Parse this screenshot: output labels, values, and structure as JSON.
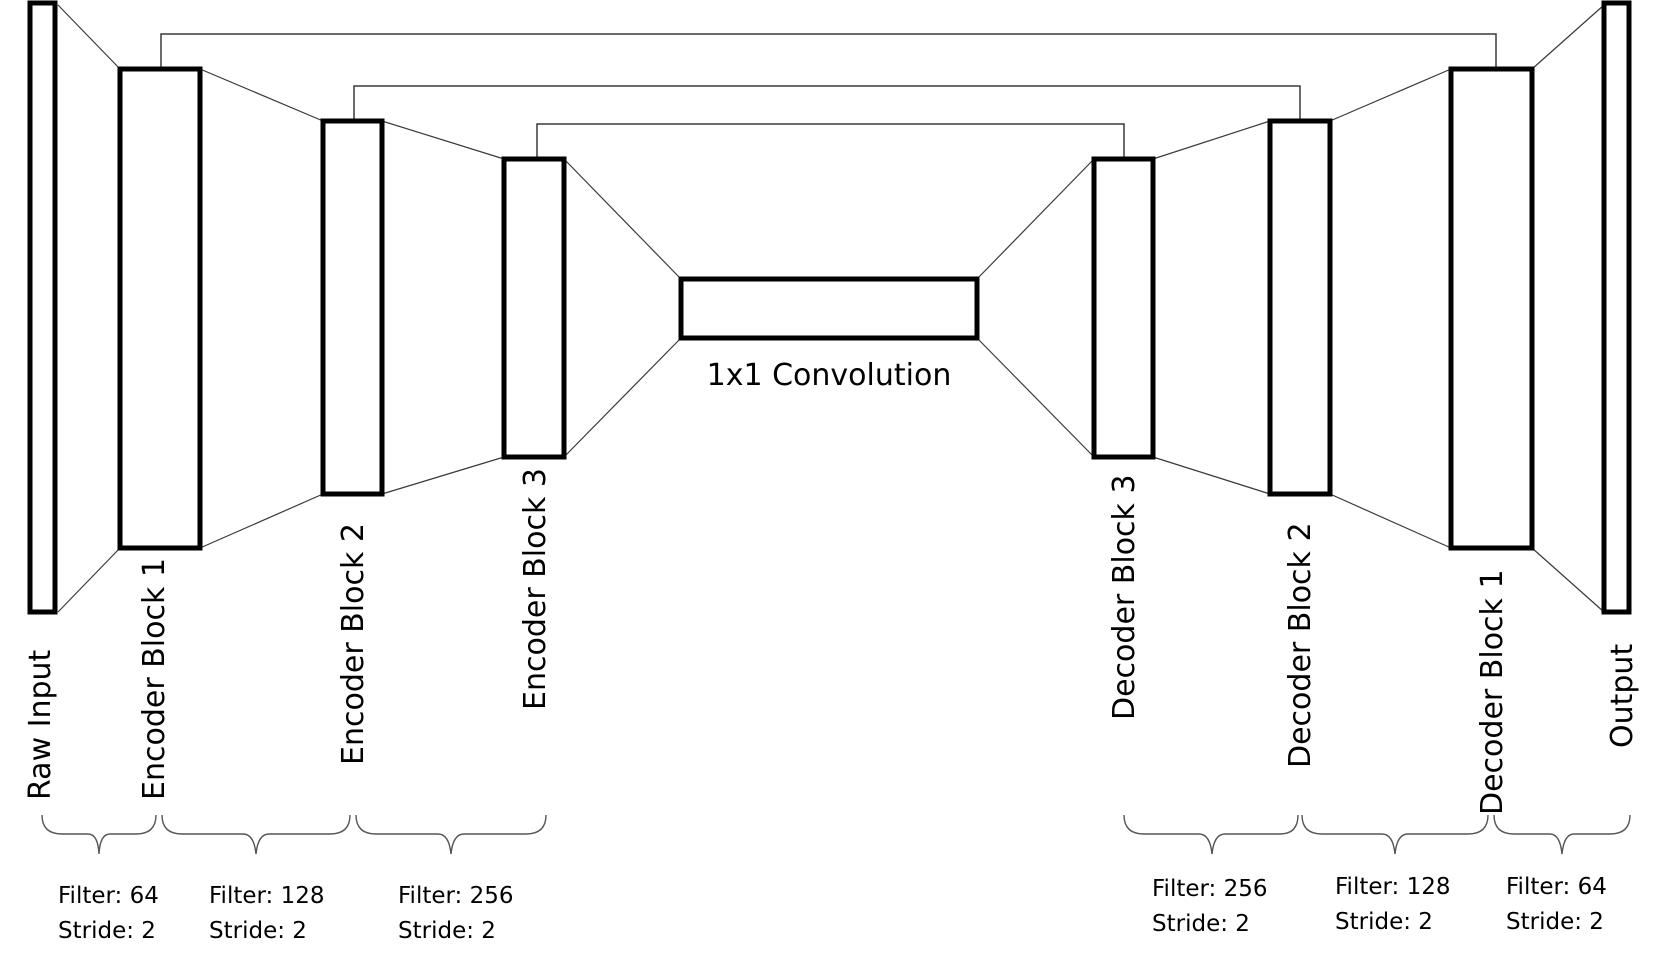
{
  "blocks": {
    "raw_input": "Raw Input",
    "encoder1": "Encoder Block 1",
    "encoder2": "Encoder Block 2",
    "encoder3": "Encoder Block 3",
    "bottleneck": "1x1 Convolution",
    "decoder3": "Decoder Block 3",
    "decoder2": "Decoder Block 2",
    "decoder1": "Decoder Block 1",
    "output": "Output"
  },
  "params": [
    {
      "filter": "Filter: 64",
      "stride": "Stride: 2"
    },
    {
      "filter": "Filter: 128",
      "stride": "Stride: 2"
    },
    {
      "filter": "Filter: 256",
      "stride": "Stride: 2"
    },
    {
      "filter": "Filter: 256",
      "stride": "Stride: 2"
    },
    {
      "filter": "Filter: 128",
      "stride": "Stride: 2"
    },
    {
      "filter": "Filter: 64",
      "stride": "Stride: 2"
    }
  ]
}
